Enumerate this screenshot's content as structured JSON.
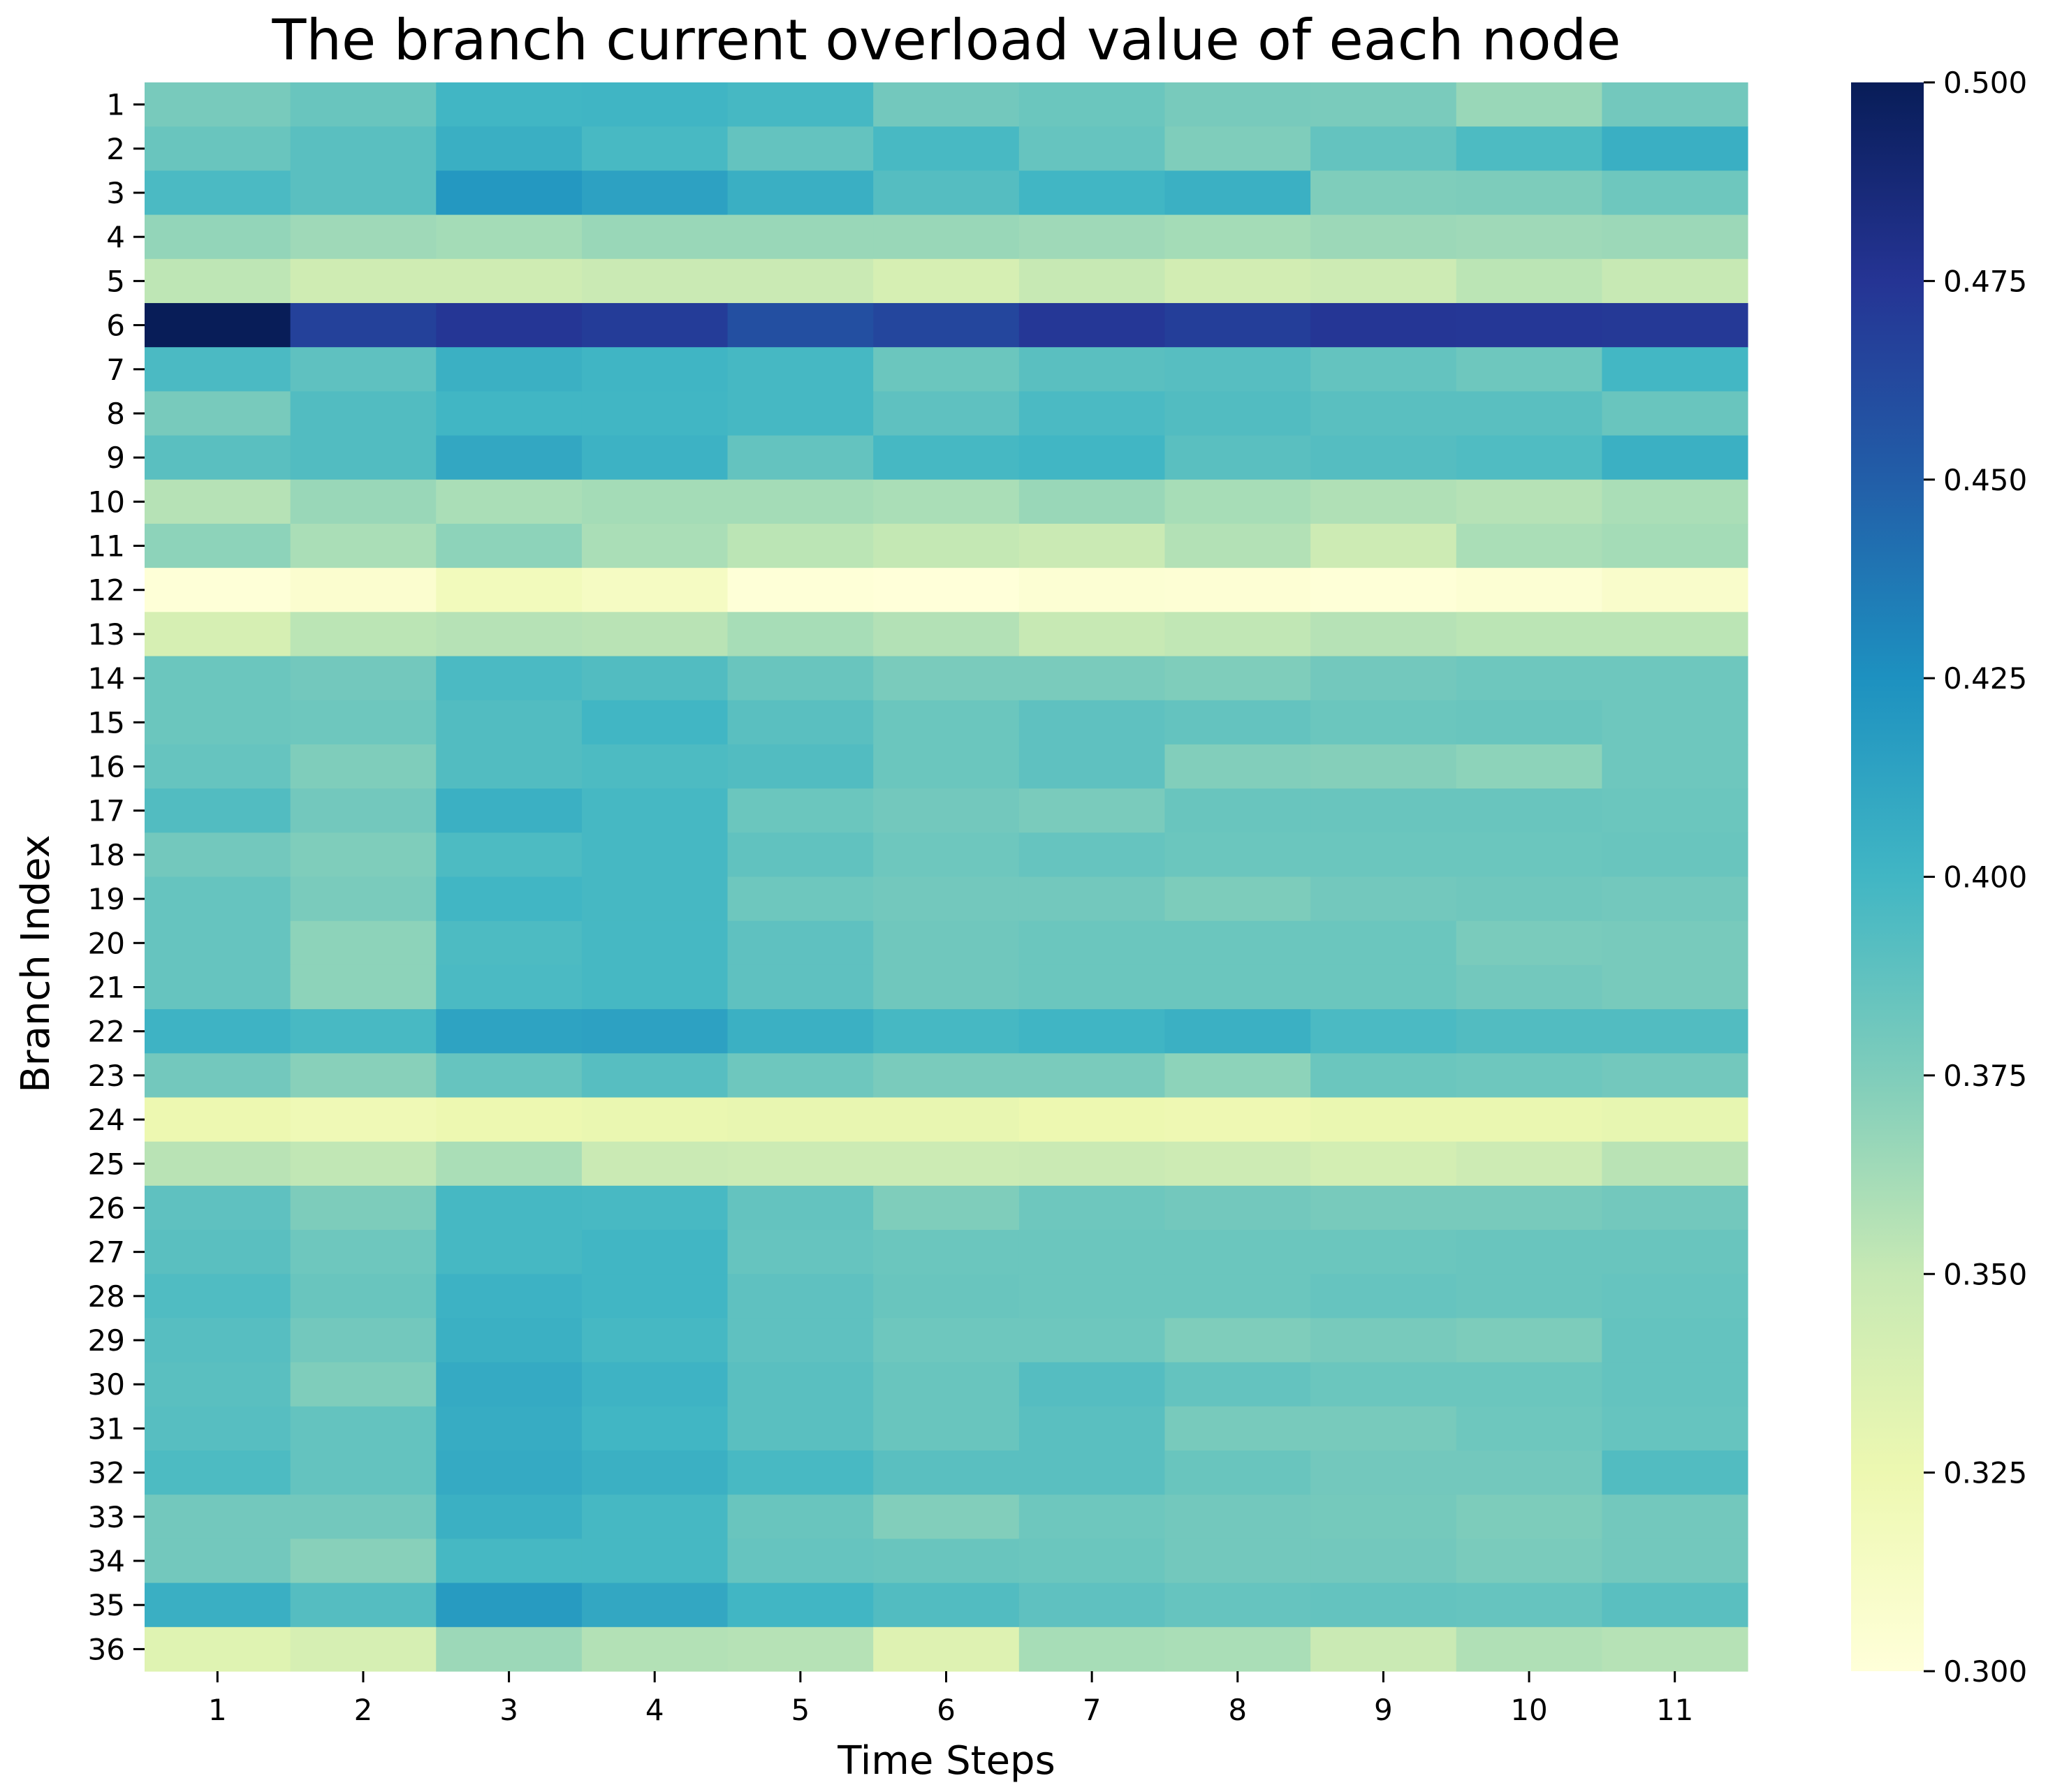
{
  "chart_data": {
    "type": "heatmap",
    "title": "The branch current overload value of each node",
    "xlabel": "Time Steps",
    "ylabel": "Branch Index",
    "x_categories": [
      "1",
      "2",
      "3",
      "4",
      "5",
      "6",
      "7",
      "8",
      "9",
      "10",
      "11"
    ],
    "y_categories": [
      "1",
      "2",
      "3",
      "4",
      "5",
      "6",
      "7",
      "8",
      "9",
      "10",
      "11",
      "12",
      "13",
      "14",
      "15",
      "16",
      "17",
      "18",
      "19",
      "20",
      "21",
      "22",
      "23",
      "24",
      "25",
      "26",
      "27",
      "28",
      "29",
      "30",
      "31",
      "32",
      "33",
      "34",
      "35",
      "36"
    ],
    "values": [
      [
        0.378,
        0.384,
        0.4,
        0.401,
        0.398,
        0.38,
        0.383,
        0.378,
        0.377,
        0.366,
        0.38
      ],
      [
        0.384,
        0.39,
        0.405,
        0.397,
        0.386,
        0.397,
        0.385,
        0.375,
        0.386,
        0.395,
        0.405
      ],
      [
        0.396,
        0.39,
        0.42,
        0.414,
        0.405,
        0.392,
        0.4,
        0.404,
        0.375,
        0.376,
        0.382
      ],
      [
        0.368,
        0.364,
        0.362,
        0.366,
        0.366,
        0.366,
        0.364,
        0.362,
        0.365,
        0.364,
        0.365
      ],
      [
        0.353,
        0.345,
        0.345,
        0.348,
        0.348,
        0.34,
        0.35,
        0.343,
        0.346,
        0.354,
        0.35
      ],
      [
        0.5,
        0.467,
        0.474,
        0.47,
        0.459,
        0.464,
        0.473,
        0.469,
        0.474,
        0.473,
        0.472
      ],
      [
        0.396,
        0.388,
        0.404,
        0.401,
        0.398,
        0.383,
        0.39,
        0.391,
        0.386,
        0.382,
        0.399
      ],
      [
        0.378,
        0.393,
        0.4,
        0.4,
        0.398,
        0.388,
        0.396,
        0.393,
        0.39,
        0.39,
        0.384
      ],
      [
        0.39,
        0.393,
        0.41,
        0.403,
        0.386,
        0.398,
        0.4,
        0.39,
        0.392,
        0.394,
        0.404
      ],
      [
        0.356,
        0.366,
        0.36,
        0.362,
        0.362,
        0.36,
        0.366,
        0.361,
        0.358,
        0.356,
        0.36
      ],
      [
        0.37,
        0.36,
        0.37,
        0.36,
        0.354,
        0.351,
        0.348,
        0.357,
        0.346,
        0.36,
        0.362
      ],
      [
        0.301,
        0.306,
        0.318,
        0.314,
        0.301,
        0.3,
        0.304,
        0.303,
        0.301,
        0.304,
        0.309
      ],
      [
        0.34,
        0.354,
        0.356,
        0.355,
        0.361,
        0.357,
        0.35,
        0.352,
        0.356,
        0.354,
        0.354
      ],
      [
        0.383,
        0.38,
        0.396,
        0.393,
        0.384,
        0.377,
        0.377,
        0.375,
        0.38,
        0.382,
        0.382
      ],
      [
        0.383,
        0.382,
        0.393,
        0.4,
        0.39,
        0.383,
        0.388,
        0.386,
        0.383,
        0.384,
        0.382
      ],
      [
        0.385,
        0.375,
        0.393,
        0.395,
        0.393,
        0.383,
        0.388,
        0.374,
        0.373,
        0.37,
        0.382
      ],
      [
        0.393,
        0.38,
        0.404,
        0.398,
        0.383,
        0.38,
        0.377,
        0.384,
        0.384,
        0.384,
        0.383
      ],
      [
        0.38,
        0.375,
        0.395,
        0.398,
        0.387,
        0.382,
        0.385,
        0.383,
        0.383,
        0.383,
        0.384
      ],
      [
        0.385,
        0.377,
        0.4,
        0.398,
        0.382,
        0.38,
        0.38,
        0.376,
        0.38,
        0.381,
        0.38
      ],
      [
        0.385,
        0.37,
        0.395,
        0.398,
        0.388,
        0.381,
        0.383,
        0.383,
        0.383,
        0.377,
        0.378
      ],
      [
        0.385,
        0.37,
        0.396,
        0.398,
        0.388,
        0.381,
        0.383,
        0.383,
        0.383,
        0.38,
        0.378
      ],
      [
        0.402,
        0.397,
        0.413,
        0.414,
        0.404,
        0.398,
        0.401,
        0.404,
        0.396,
        0.393,
        0.393
      ],
      [
        0.38,
        0.372,
        0.385,
        0.391,
        0.382,
        0.377,
        0.377,
        0.37,
        0.383,
        0.382,
        0.38
      ],
      [
        0.325,
        0.322,
        0.325,
        0.327,
        0.328,
        0.328,
        0.325,
        0.324,
        0.327,
        0.327,
        0.329
      ],
      [
        0.355,
        0.352,
        0.36,
        0.348,
        0.347,
        0.347,
        0.348,
        0.346,
        0.342,
        0.346,
        0.355
      ],
      [
        0.388,
        0.376,
        0.398,
        0.397,
        0.386,
        0.375,
        0.382,
        0.38,
        0.378,
        0.378,
        0.38
      ],
      [
        0.39,
        0.382,
        0.398,
        0.4,
        0.385,
        0.383,
        0.383,
        0.383,
        0.383,
        0.384,
        0.384
      ],
      [
        0.394,
        0.384,
        0.403,
        0.4,
        0.388,
        0.384,
        0.383,
        0.383,
        0.385,
        0.384,
        0.385
      ],
      [
        0.391,
        0.38,
        0.404,
        0.398,
        0.388,
        0.382,
        0.382,
        0.375,
        0.378,
        0.376,
        0.386
      ],
      [
        0.39,
        0.375,
        0.408,
        0.402,
        0.39,
        0.384,
        0.392,
        0.386,
        0.383,
        0.383,
        0.386
      ],
      [
        0.391,
        0.386,
        0.407,
        0.4,
        0.39,
        0.384,
        0.39,
        0.378,
        0.378,
        0.382,
        0.385
      ],
      [
        0.395,
        0.386,
        0.408,
        0.404,
        0.397,
        0.39,
        0.39,
        0.384,
        0.38,
        0.38,
        0.393
      ],
      [
        0.38,
        0.38,
        0.404,
        0.398,
        0.384,
        0.374,
        0.382,
        0.38,
        0.379,
        0.376,
        0.38
      ],
      [
        0.38,
        0.372,
        0.398,
        0.398,
        0.385,
        0.384,
        0.383,
        0.38,
        0.38,
        0.377,
        0.38
      ],
      [
        0.405,
        0.392,
        0.418,
        0.41,
        0.4,
        0.393,
        0.388,
        0.385,
        0.386,
        0.385,
        0.39
      ],
      [
        0.334,
        0.34,
        0.365,
        0.357,
        0.356,
        0.335,
        0.361,
        0.36,
        0.348,
        0.358,
        0.356
      ]
    ],
    "vmin": 0.3,
    "vmax": 0.5,
    "colormap": "YlGnBu",
    "colorbar_ticks": [
      "0.300",
      "0.325",
      "0.350",
      "0.375",
      "0.400",
      "0.425",
      "0.450",
      "0.475",
      "0.500"
    ],
    "grid": false,
    "colorbar_position": "right"
  }
}
